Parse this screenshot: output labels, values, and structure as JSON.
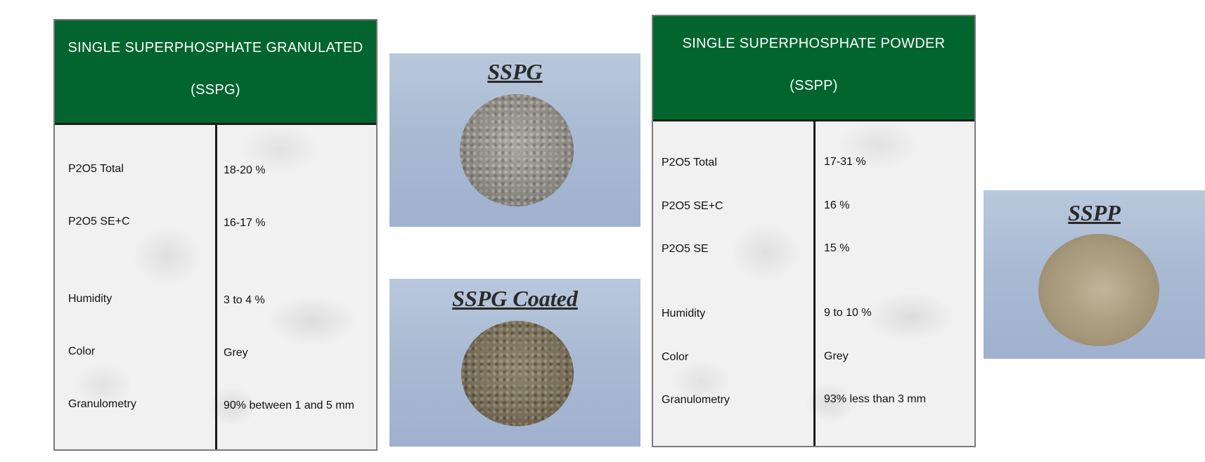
{
  "sspg_card": {
    "title_line1": "SINGLE SUPERPHOSPHATE GRANULATED",
    "title_line2": "(SSPG)",
    "rows": [
      {
        "label": "P2O5 Total",
        "value": "18-20 %"
      },
      {
        "label": "P2O5 SE+C",
        "value": "16-17 %"
      },
      {
        "label": "Humidity",
        "value": "3 to 4 %"
      },
      {
        "label": "Color",
        "value": "Grey"
      },
      {
        "label": "Granulometry",
        "value": "90% between 1 and 5 mm"
      }
    ]
  },
  "sspp_card": {
    "title_line1": "SINGLE SUPERPHOSPHATE POWDER",
    "title_line2": "(SSPP)",
    "rows": [
      {
        "label": "P2O5 Total",
        "value": "17-31 %"
      },
      {
        "label": "P2O5 SE+C",
        "value": "16 %"
      },
      {
        "label": "P2O5 SE",
        "value": "15 %"
      },
      {
        "label": "Humidity",
        "value": "9 to 10 %"
      },
      {
        "label": "Color",
        "value": "Grey"
      },
      {
        "label": "Granulometry",
        "value": "93% less than 3 mm"
      }
    ]
  },
  "photos": {
    "sspg": "SSPG",
    "sspg_coated": "SSPG Coated",
    "sspp": "SSPP"
  }
}
